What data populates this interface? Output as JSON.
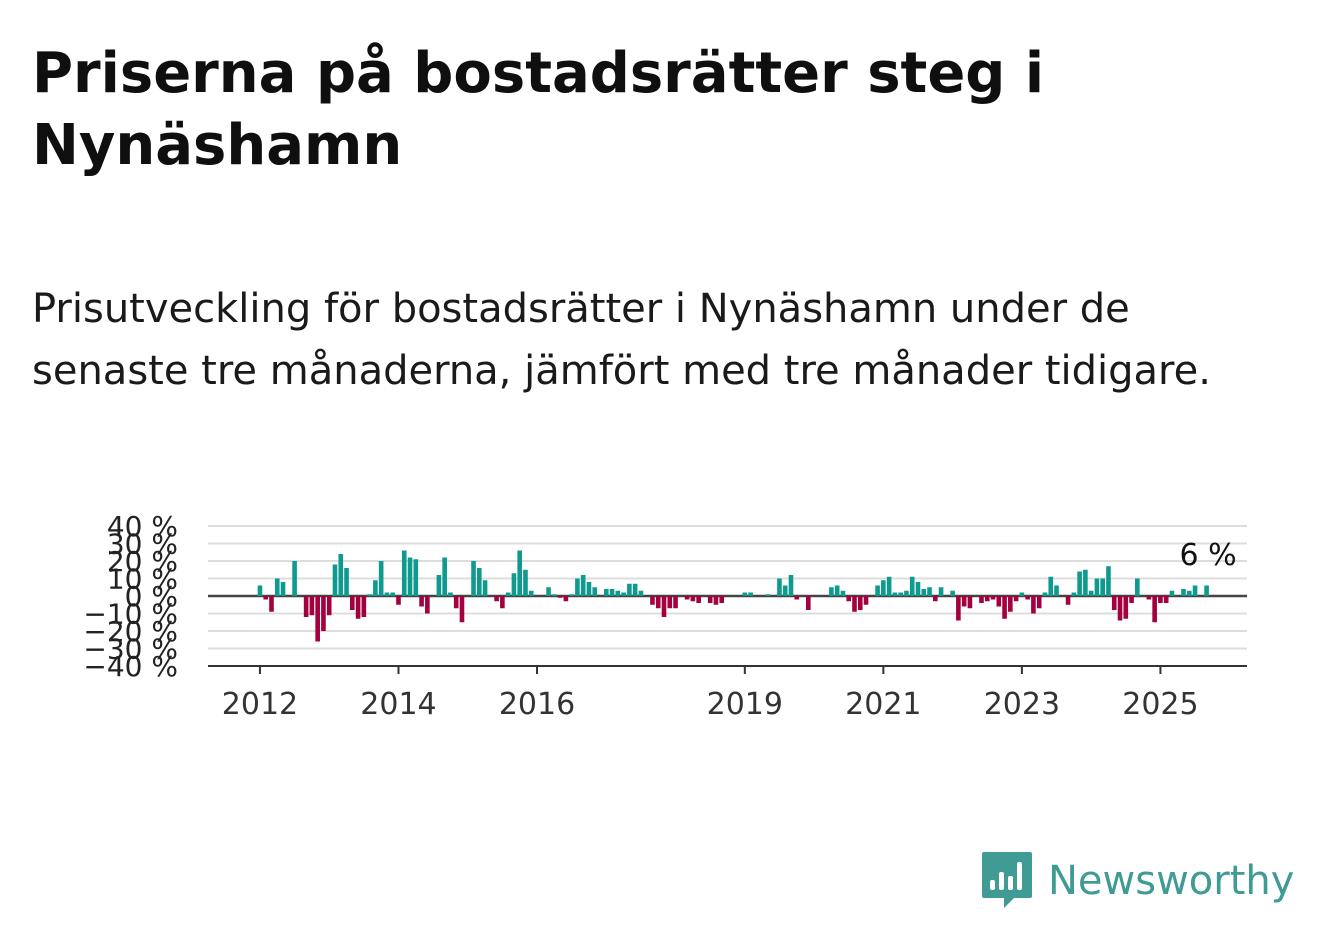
{
  "title": "Priserna på bostadsrätter steg i Nynäshamn",
  "subtitle": "Prisutveckling för bostadsrätter i Nynäshamn under de senaste tre månaderna, jämfört med tre månader tidigare.",
  "brand": {
    "name": "Newsworthy",
    "color": "#3f9b93",
    "icon": "bar-chart-logo-icon"
  },
  "colors": {
    "positive": "#0f9a8f",
    "negative": "#a3003f",
    "grid": "#dddddd",
    "zero": "#444444"
  },
  "chart_data": {
    "type": "bar",
    "title": "",
    "xlabel": "",
    "ylabel": "",
    "y_tick_labels": [
      "40 %",
      "30 %",
      "20 %",
      "10 %",
      "0 %",
      "−10 %",
      "−20 %",
      "−30 %",
      "−40 %"
    ],
    "y_ticks": [
      40,
      30,
      20,
      10,
      0,
      -10,
      -20,
      -30,
      -40
    ],
    "ylim": [
      -40,
      40
    ],
    "x_ticks": [
      2012,
      2014,
      2016,
      2019,
      2021,
      2023,
      2025
    ],
    "x_tick_labels": [
      "2012",
      "2014",
      "2016",
      "2019",
      "2021",
      "2023",
      "2025"
    ],
    "xlim": [
      2011.25,
      2026.25
    ],
    "grid": true,
    "last_value_label": "6 %",
    "months_from": "2012-01",
    "values": [
      6,
      -2,
      -9,
      10,
      8,
      0,
      20,
      0,
      -12,
      -11,
      -26,
      -20,
      -11,
      18,
      24,
      16,
      -8,
      -13,
      -12,
      1,
      9,
      20,
      2,
      2,
      -5,
      26,
      22,
      21,
      -6,
      -10,
      0,
      12,
      22,
      2,
      -7,
      -15,
      0,
      20,
      16,
      9,
      0,
      -3,
      -7,
      2,
      13,
      26,
      15,
      3,
      0,
      0,
      5,
      1,
      -1,
      -3,
      1,
      10,
      12,
      8,
      5,
      0,
      4,
      4,
      3,
      2,
      7,
      7,
      3,
      0,
      -5,
      -7,
      -12,
      -7,
      -7,
      0,
      -2,
      -3,
      -4,
      0,
      -4,
      -5,
      -4,
      0,
      0,
      0,
      2,
      2,
      0,
      0,
      1,
      0,
      10,
      6,
      12,
      -2,
      0,
      -8,
      0,
      0,
      0,
      5,
      6,
      3,
      -3,
      -9,
      -8,
      -5,
      0,
      6,
      9,
      11,
      2,
      2,
      3,
      11,
      8,
      4,
      5,
      -3,
      5,
      0,
      3,
      -14,
      -6,
      -7,
      0,
      -4,
      -3,
      -2,
      -6,
      -13,
      -9,
      -3,
      2,
      -2,
      -10,
      -7,
      2,
      11,
      6,
      0,
      -5,
      2,
      14,
      15,
      3,
      10,
      10,
      17,
      -8,
      -14,
      -13,
      -4,
      10,
      0,
      -2,
      -15,
      -4,
      -4,
      3,
      0,
      4,
      3,
      6,
      0,
      6
    ]
  }
}
